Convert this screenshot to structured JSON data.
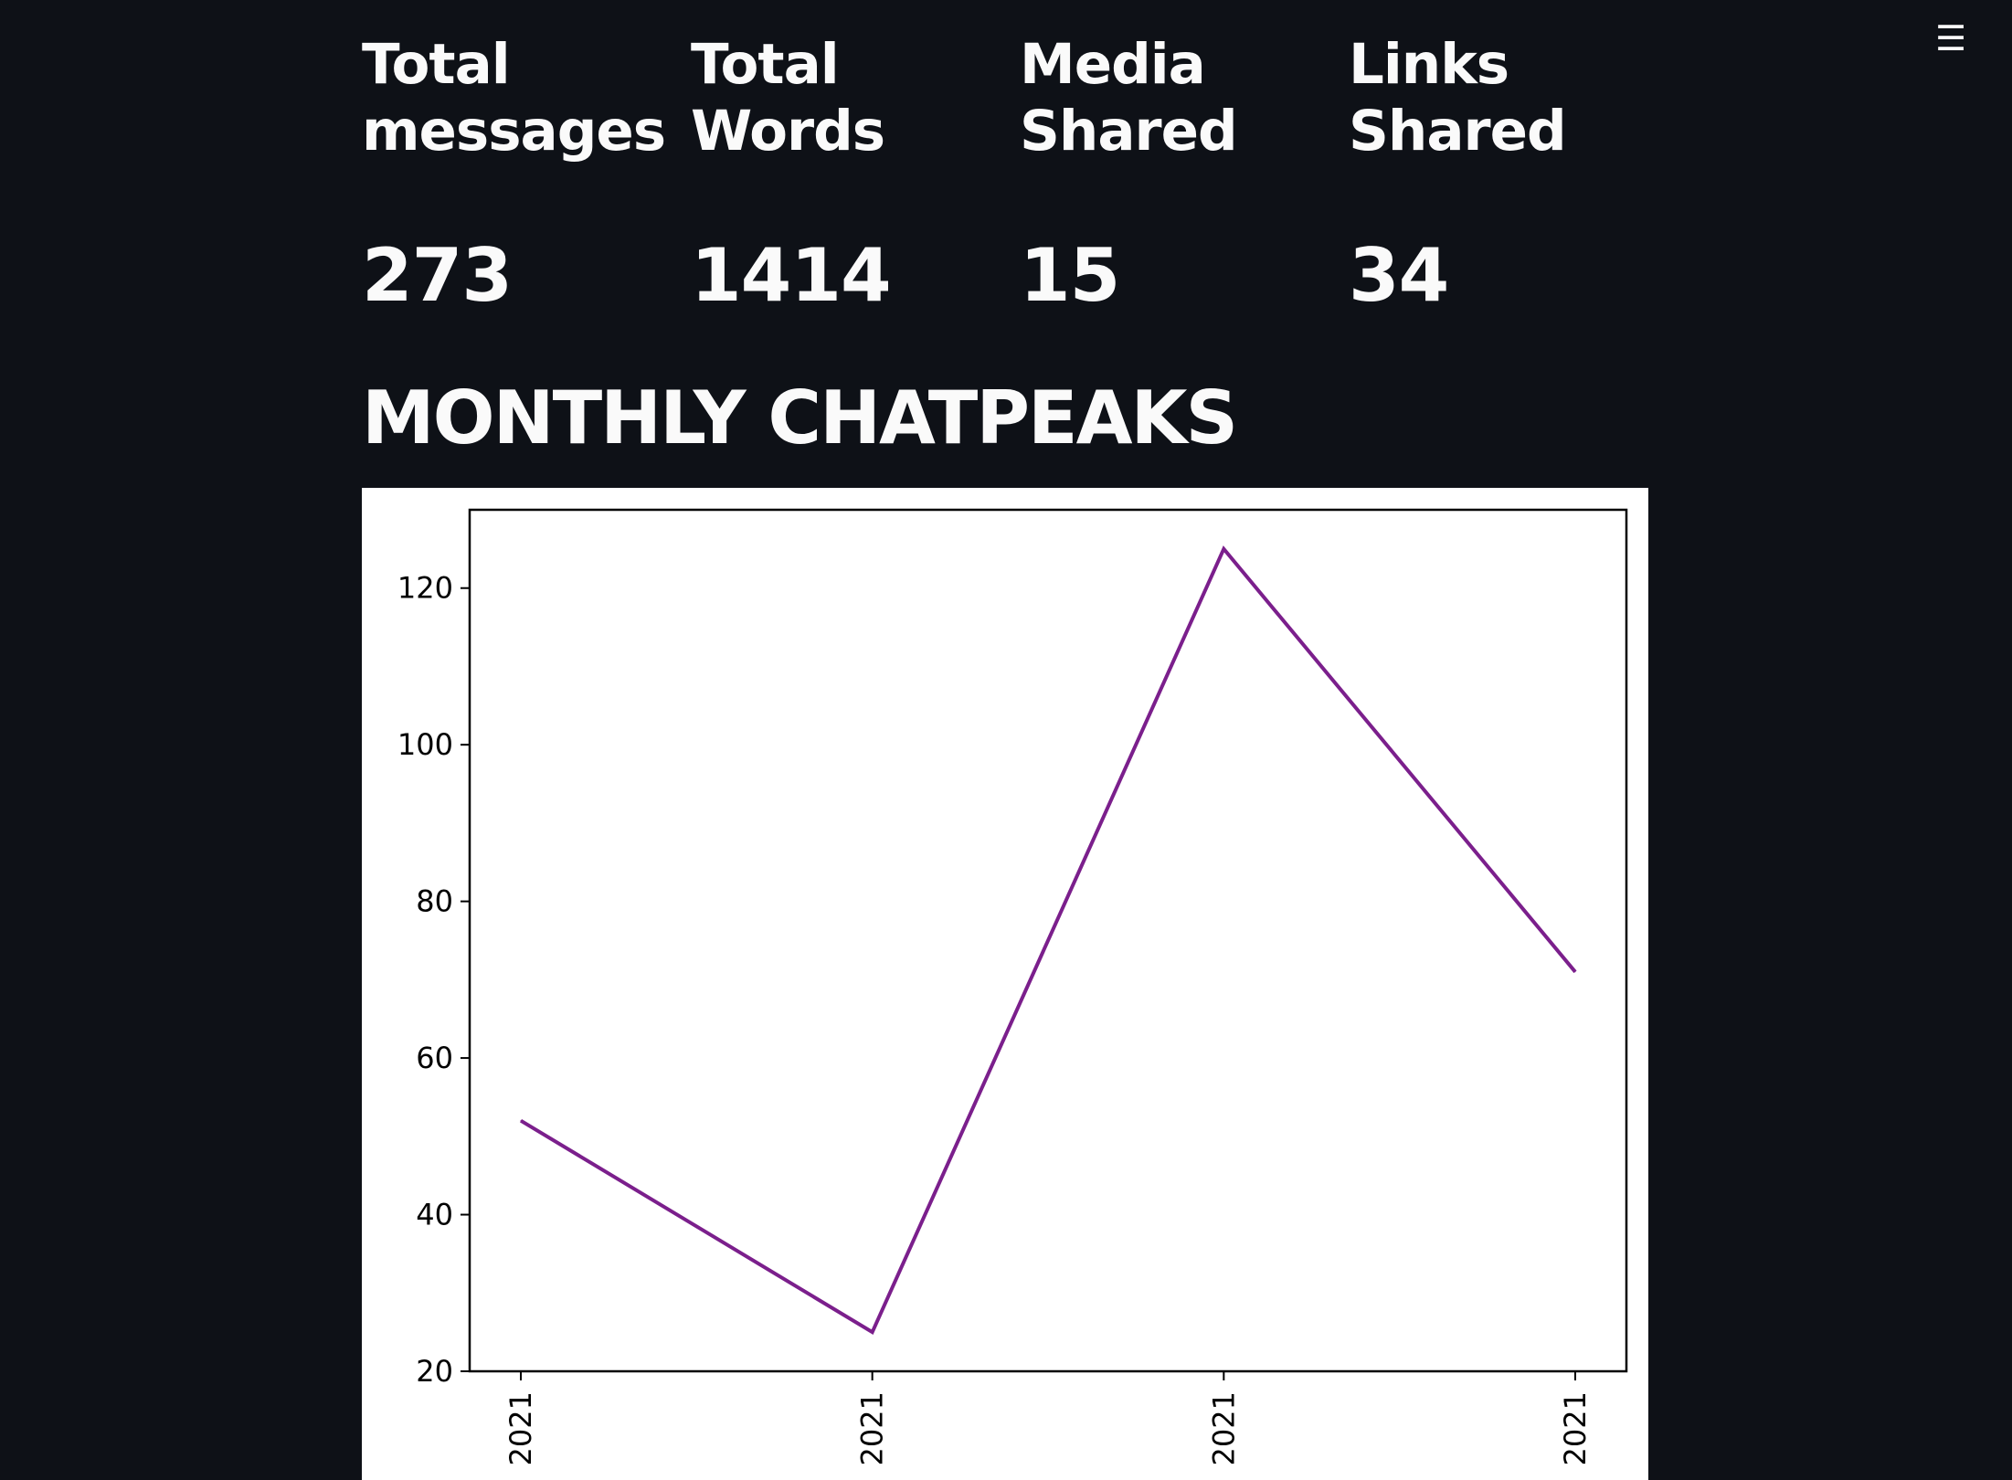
{
  "menu": {
    "icon": "hamburger-menu-icon",
    "glyph": "☰"
  },
  "metrics": [
    {
      "label": "Total\nmessages",
      "value": "273"
    },
    {
      "label": "Total\nWords",
      "value": "1414"
    },
    {
      "label": "Media\nShared",
      "value": "15"
    },
    {
      "label": "Links\nShared",
      "value": "34"
    }
  ],
  "section": {
    "title": "MONTHLY CHATPEAKS"
  },
  "colors": {
    "background": "#0e1117",
    "text": "#fafafa",
    "line": "#7b1f8c"
  },
  "chart_data": {
    "type": "line",
    "categories": [
      "2021",
      "2021",
      "2021",
      "2021"
    ],
    "series": [
      {
        "values": [
          52,
          25,
          125,
          71
        ]
      }
    ],
    "y_ticks": [
      "20",
      "40",
      "60",
      "80",
      "100",
      "120"
    ],
    "ylim": [
      20,
      130
    ],
    "grid": false,
    "legend": "none",
    "line_color": "#7b1f8c",
    "x_tick_label_rotation": "vertical"
  }
}
